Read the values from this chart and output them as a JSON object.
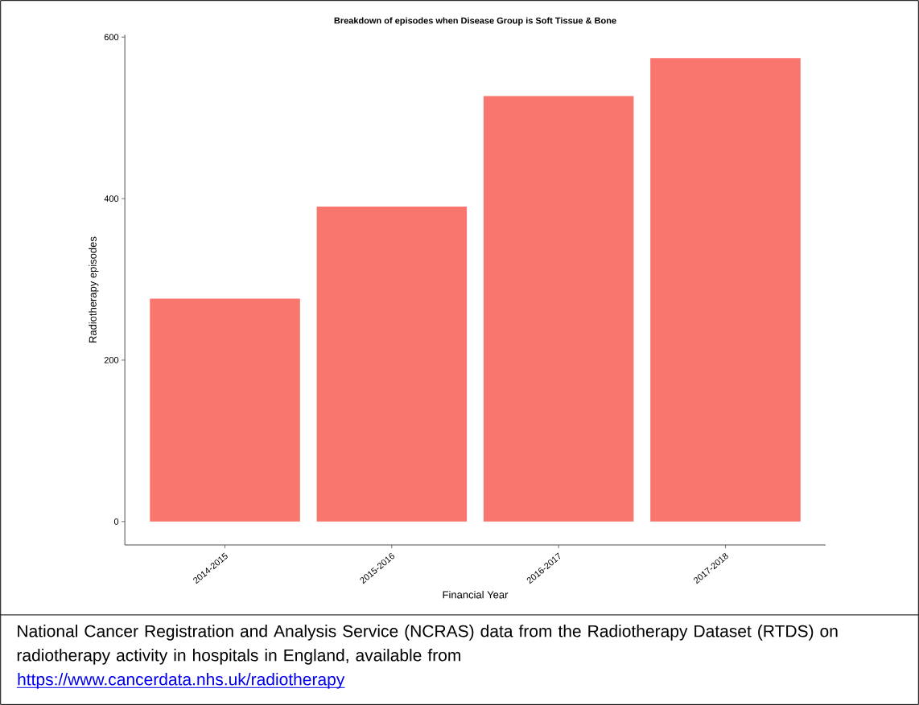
{
  "chart_data": {
    "type": "bar",
    "title": "Breakdown of episodes when Disease Group is Soft Tissue & Bone",
    "xlabel": "Financial Year",
    "ylabel": "Radiotherapy episodes",
    "categories": [
      "2014-2015",
      "2015-2016",
      "2016-2017",
      "2017-2018"
    ],
    "values": [
      276,
      390,
      527,
      574
    ],
    "color": "#f8766d",
    "ylim": [
      -29,
      603
    ],
    "yticks": [
      0,
      200,
      400,
      600
    ],
    "grid": false,
    "annotations": [
      "National Cancer Registration and Analysis Service (NCRAS) data from the Radiotherapy Dataset (RTDS) on radiotherapy activity in hospitals in England, available from",
      "https://www.cancerdata.nhs.uk/radiotherapy"
    ]
  }
}
